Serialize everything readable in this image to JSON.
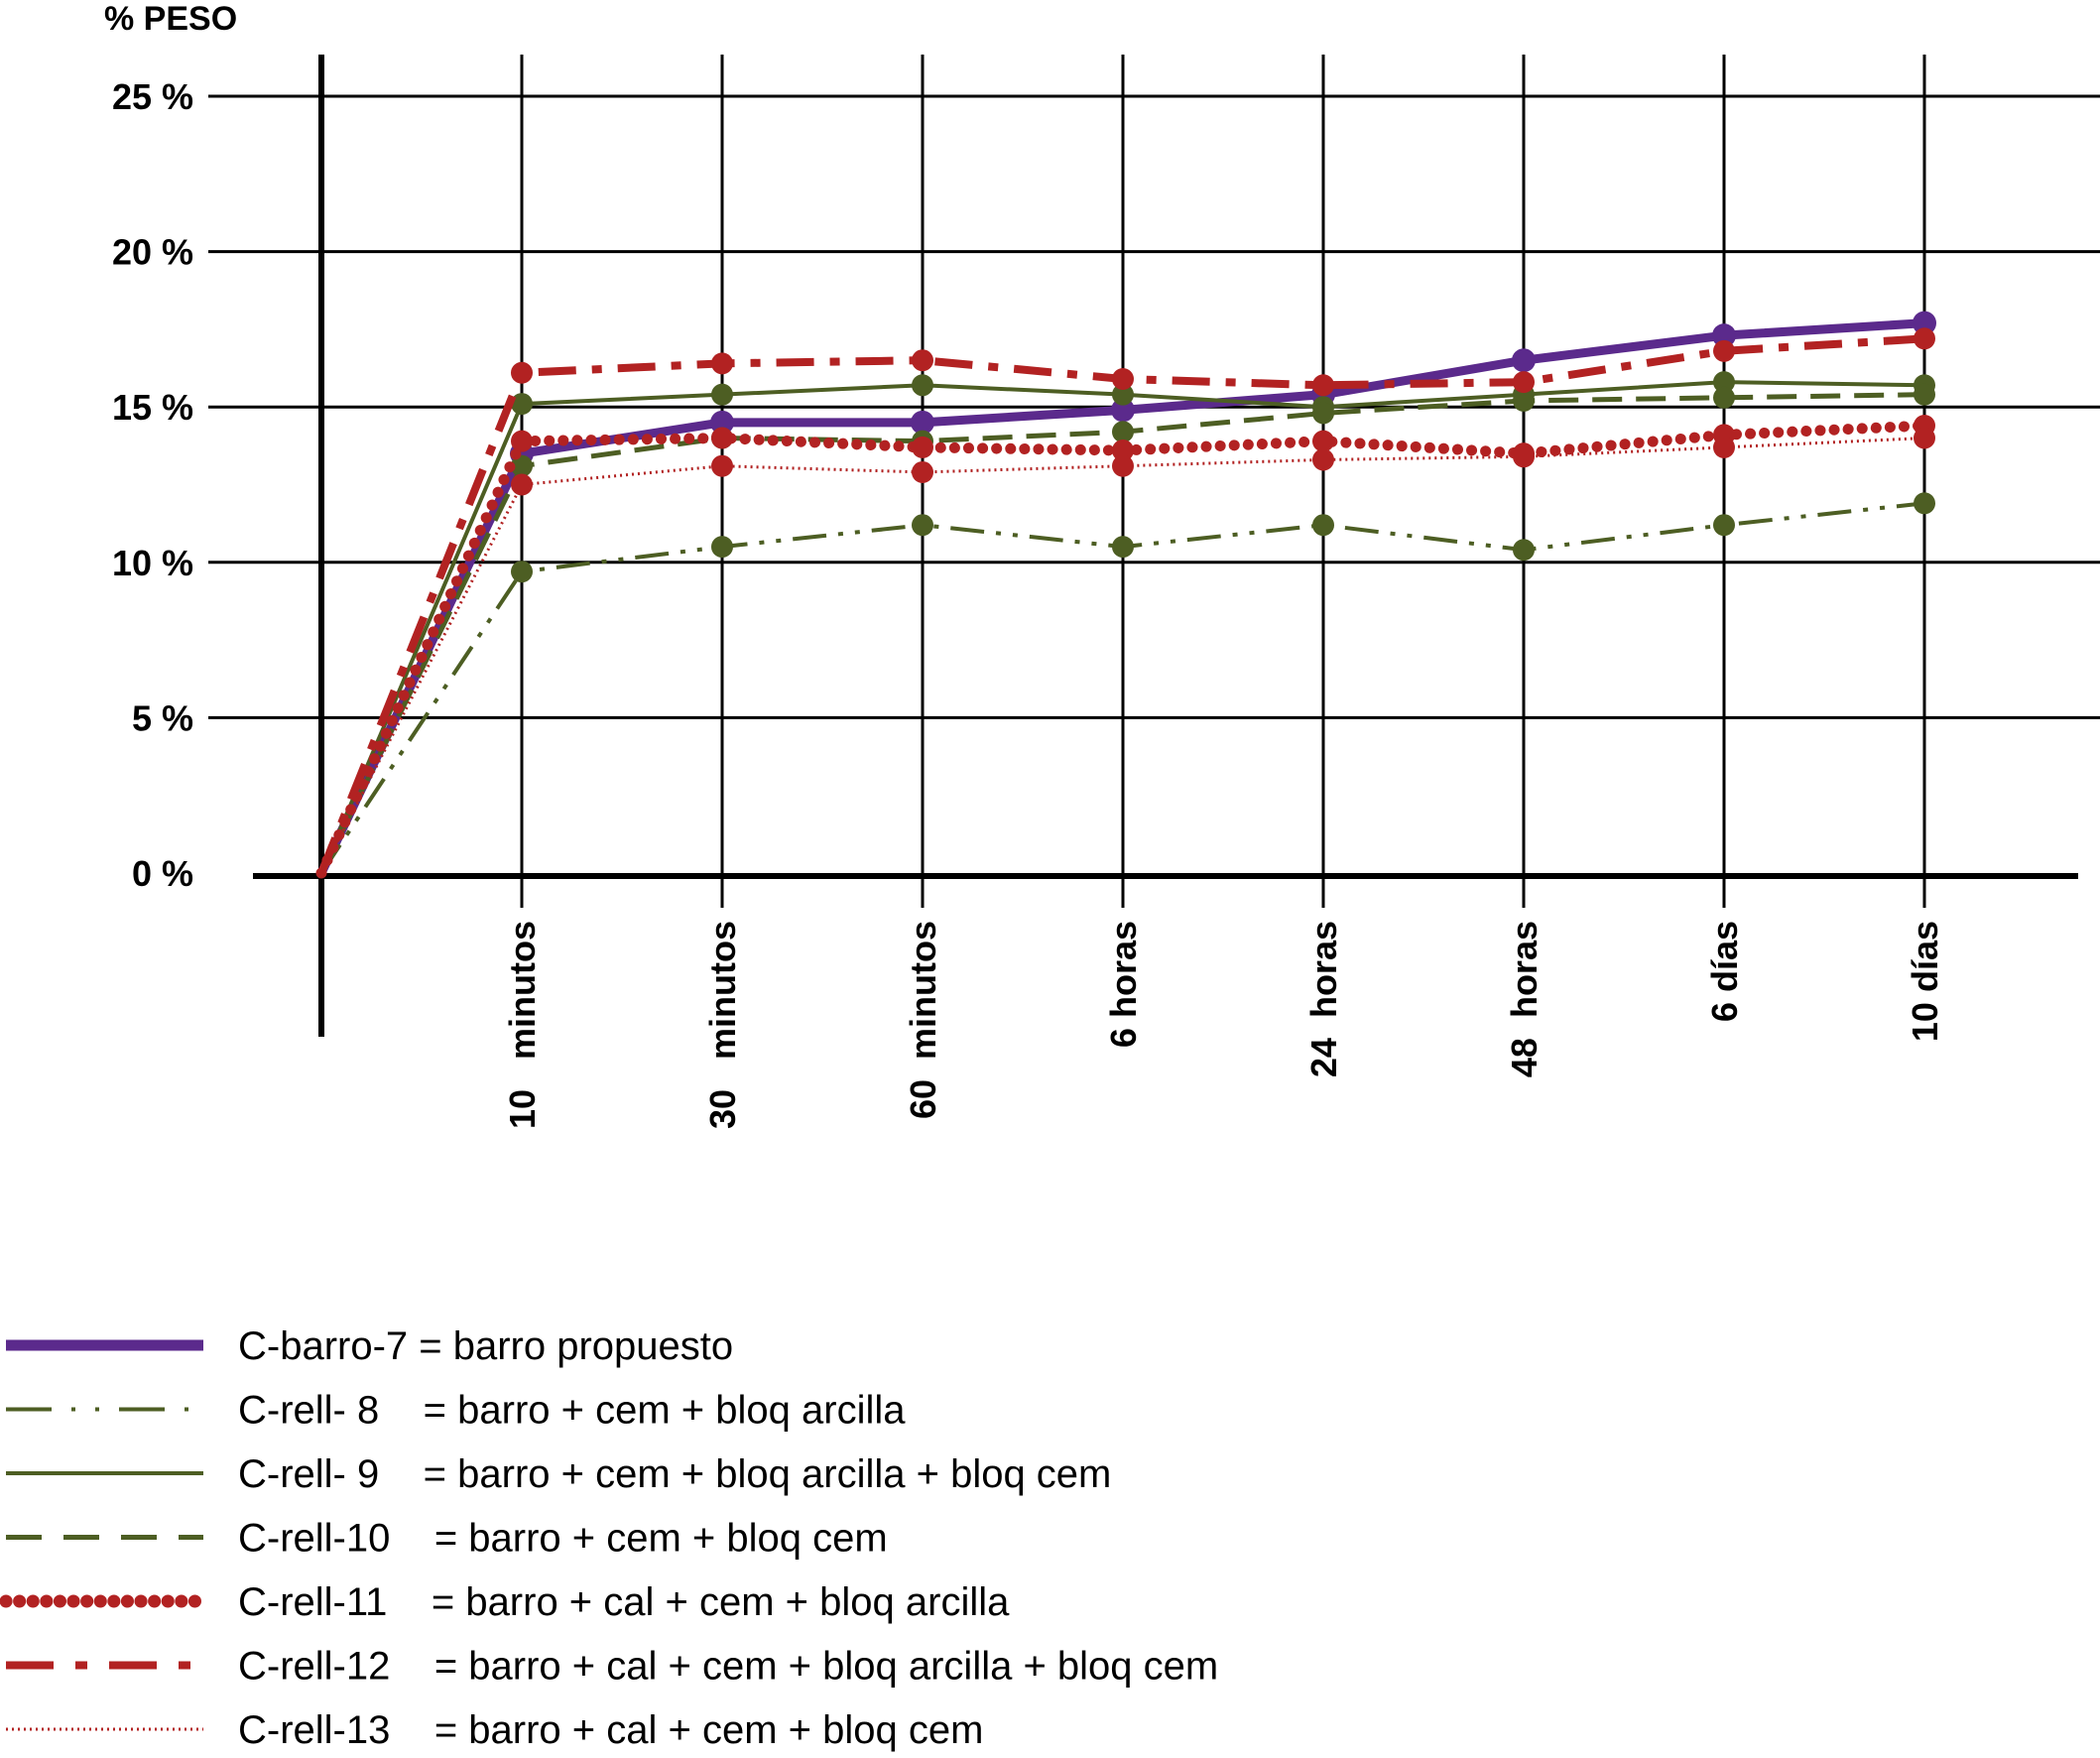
{
  "chart_data": {
    "type": "line",
    "title": "",
    "ylabel": "% PESO",
    "xlabel": "",
    "ylim": [
      0,
      25
    ],
    "yticks": [
      0,
      5,
      10,
      15,
      20,
      25
    ],
    "ytick_labels": [
      "0 %",
      "5 %",
      "10 %",
      "15 %",
      "20 %",
      "25 %"
    ],
    "categories": [
      "",
      "10   minutos",
      "30   minutos",
      "60  minutos",
      "6 horas",
      "24  horas",
      "48  horas",
      "6 días",
      "10 días"
    ],
    "grid": true,
    "legend_position": "bottom-left",
    "series": [
      {
        "name": "C-barro-7",
        "label": "C-barro-7 = barro propuesto",
        "color": "#5b2a8c",
        "style": "solid-thick",
        "markers": true,
        "values": [
          0,
          13.5,
          14.5,
          14.5,
          14.9,
          15.4,
          16.5,
          17.3,
          17.7
        ]
      },
      {
        "name": "C-rell- 8",
        "label": "C-rell- 8    = barro + cem + bloq arcilla",
        "color": "#4d5e23",
        "style": "dashdotdot",
        "markers": true,
        "values": [
          0,
          9.7,
          10.5,
          11.2,
          10.5,
          11.2,
          10.4,
          11.2,
          11.9
        ]
      },
      {
        "name": "C-rell- 9",
        "label": "C-rell- 9    = barro + cem + bloq arcilla + bloq cem",
        "color": "#4d5e23",
        "style": "solid",
        "markers": true,
        "values": [
          0,
          15.1,
          15.4,
          15.7,
          15.4,
          15.0,
          15.4,
          15.8,
          15.7
        ]
      },
      {
        "name": "C-rell-10",
        "label": "C-rell-10    = barro + cem + bloq cem",
        "color": "#4d5e23",
        "style": "dashed",
        "markers": true,
        "values": [
          0,
          13.1,
          14.0,
          13.9,
          14.2,
          14.8,
          15.2,
          15.3,
          15.4
        ]
      },
      {
        "name": "C-rell-11",
        "label": "C-rell-11    = barro + cal + cem + bloq arcilla",
        "color": "#b22222",
        "style": "beaded",
        "markers": true,
        "values": [
          0,
          13.9,
          14.0,
          13.7,
          13.6,
          13.9,
          13.5,
          14.1,
          14.4
        ]
      },
      {
        "name": "C-rell-12",
        "label": "C-rell-12    = barro + cal + cem + bloq arcilla + bloq cem",
        "color": "#b22222",
        "style": "dashdot-thick",
        "markers": true,
        "values": [
          0,
          16.1,
          16.4,
          16.5,
          15.9,
          15.7,
          15.8,
          16.8,
          17.2
        ]
      },
      {
        "name": "C-rell-13",
        "label": "C-rell-13    = barro + cal + cem + bloq cem",
        "color": "#b22222",
        "style": "dotted",
        "markers": true,
        "values": [
          0,
          12.5,
          13.1,
          12.9,
          13.1,
          13.3,
          13.4,
          13.7,
          14.0
        ]
      }
    ]
  }
}
